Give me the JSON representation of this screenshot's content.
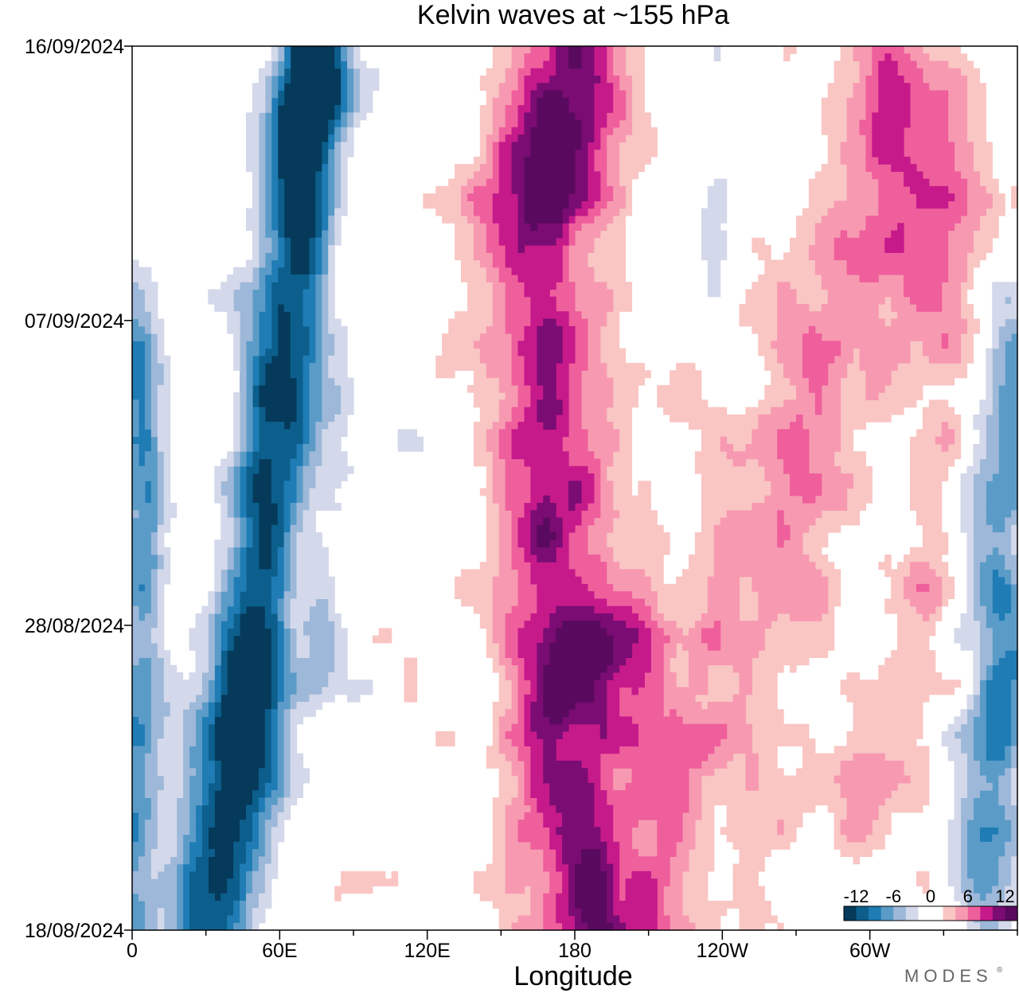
{
  "chart_data": {
    "type": "heatmap",
    "title": "Kelvin waves at ~155 hPa",
    "xlabel": "Longitude",
    "ylabel": "",
    "x_ticks": [
      {
        "lon": 0,
        "label": "0"
      },
      {
        "lon": 60,
        "label": "60E"
      },
      {
        "lon": 120,
        "label": "120E"
      },
      {
        "lon": 180,
        "label": "180"
      },
      {
        "lon": 240,
        "label": "120W"
      },
      {
        "lon": 300,
        "label": "60W"
      }
    ],
    "y_ticks": [
      {
        "day": 0,
        "label": "18/08/2024"
      },
      {
        "day": 10,
        "label": "28/08/2024"
      },
      {
        "day": 20,
        "label": "07/09/2024"
      },
      {
        "day": 29,
        "label": "16/09/2024"
      }
    ],
    "xlim": [
      0,
      360
    ],
    "ylim": [
      0,
      29
    ],
    "contour_levels": [
      -12,
      -10,
      -8,
      -6,
      -4,
      -2,
      0,
      2,
      4,
      6,
      8,
      10,
      12
    ],
    "colorbar": {
      "labels": [
        {
          "value": -12,
          "label": "-12"
        },
        {
          "value": -6,
          "label": "-6"
        },
        {
          "value": 0,
          "label": "0"
        },
        {
          "value": 6,
          "label": "6"
        },
        {
          "value": 12,
          "label": "12"
        }
      ],
      "colors": [
        "#053a5a",
        "#0c5f8c",
        "#1f7cb4",
        "#5b9bc8",
        "#9db8d8",
        "#d3d8ea",
        "#ffffff",
        "#ffffff",
        "#f9c6c4",
        "#f79ab1",
        "#ef5f9c",
        "#c61a8a",
        "#7b0c74",
        "#5a0a5e"
      ],
      "placement": "bottom-right"
    },
    "features": [
      {
        "name": "negative-band-indian-ocean",
        "sign": "negative",
        "points": [
          [
            30,
            0
          ],
          [
            42,
            5
          ],
          [
            52,
            10
          ],
          [
            55,
            15
          ],
          [
            65,
            20
          ],
          [
            70,
            25
          ],
          [
            75,
            29
          ]
        ],
        "amplitude": 13.5,
        "width_lon": 13,
        "width_day": 6
      },
      {
        "name": "negative-max-a",
        "sign": "negative",
        "points": [
          [
            44,
            7
          ]
        ],
        "amplitude": 6,
        "width_lon": 8,
        "width_day": 2
      },
      {
        "name": "negative-max-b",
        "sign": "negative",
        "points": [
          [
            76,
            10
          ]
        ],
        "amplitude": 6,
        "width_lon": 7,
        "width_day": 2.2
      },
      {
        "name": "negative-max-c",
        "sign": "negative",
        "points": [
          [
            64,
            26
          ],
          [
            78,
            28
          ]
        ],
        "amplitude": 6,
        "width_lon": 8,
        "width_day": 2
      },
      {
        "name": "negative-west-edge",
        "sign": "negative",
        "points": [
          [
            0,
            2
          ],
          [
            4,
            8
          ],
          [
            6,
            14
          ],
          [
            2,
            19
          ]
        ],
        "amplitude": 7,
        "width_lon": 9,
        "width_day": 4
      },
      {
        "name": "negative-east-edge",
        "sign": "negative",
        "points": [
          [
            348,
            3
          ],
          [
            355,
            9
          ],
          [
            350,
            14
          ],
          [
            360,
            17
          ]
        ],
        "amplitude": 8,
        "width_lon": 12,
        "width_day": 4
      },
      {
        "name": "negative-pacific-small",
        "sign": "negative",
        "points": [
          [
            237,
            22
          ]
        ],
        "amplitude": 4.5,
        "width_lon": 7,
        "width_day": 2
      },
      {
        "name": "positive-main",
        "sign": "positive",
        "points": [
          [
            185,
            0
          ],
          [
            178,
            5
          ],
          [
            172,
            12
          ],
          [
            170,
            17
          ],
          [
            162,
            23
          ],
          [
            180,
            29
          ]
        ],
        "amplitude": 9.5,
        "width_lon": 26,
        "width_day": 6
      },
      {
        "name": "positive-max-a",
        "sign": "positive",
        "points": [
          [
            170,
            24.5
          ],
          [
            182,
            26.5
          ]
        ],
        "amplitude": 5,
        "width_lon": 10,
        "width_day": 2.5
      },
      {
        "name": "positive-max-b",
        "sign": "positive",
        "points": [
          [
            170,
            8
          ],
          [
            205,
            10
          ]
        ],
        "amplitude": 5,
        "width_lon": 10,
        "width_day": 1.6
      },
      {
        "name": "positive-max-c",
        "sign": "positive",
        "points": [
          [
            168,
            14
          ]
        ],
        "amplitude": 3,
        "width_lon": 5,
        "width_day": 1.5
      },
      {
        "name": "positive-max-d",
        "sign": "positive",
        "points": [
          [
            188,
            1
          ]
        ],
        "amplitude": 4,
        "width_lon": 7,
        "width_day": 2
      },
      {
        "name": "positive-pacific-east",
        "sign": "positive",
        "points": [
          [
            220,
            4
          ],
          [
            250,
            10
          ],
          [
            270,
            16
          ],
          [
            290,
            20
          ],
          [
            300,
            23
          ],
          [
            320,
            25
          ]
        ],
        "amplitude": 5,
        "width_lon": 24,
        "width_day": 7
      },
      {
        "name": "positive-atlantic",
        "sign": "positive",
        "points": [
          [
            295,
            5
          ],
          [
            315,
            8
          ],
          [
            325,
            13
          ]
        ],
        "amplitude": 4,
        "width_lon": 10,
        "width_day": 4
      },
      {
        "name": "positive-far-east",
        "sign": "positive",
        "points": [
          [
            335,
            21
          ],
          [
            310,
            27
          ]
        ],
        "amplitude": 3.5,
        "width_lon": 12,
        "width_day": 5
      },
      {
        "name": "positive-west-edge",
        "sign": "positive",
        "points": [
          [
            4,
            23
          ]
        ],
        "amplitude": 3,
        "width_lon": 5,
        "width_day": 2
      }
    ]
  },
  "logo": {
    "text": "MODES"
  }
}
